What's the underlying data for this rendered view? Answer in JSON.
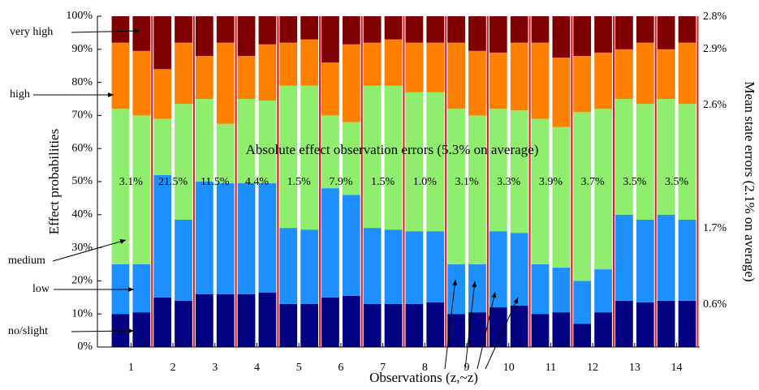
{
  "chart_data": {
    "type": "stacked_bar",
    "y_label": "Effect probabilities",
    "x_label": "Observations (z,~z)",
    "y2_label": "Mean state errors (2.1% on average)",
    "annotation": "Absolute effect observation errors (5.3% on average)",
    "xlim": [
      0.2,
      14.55
    ],
    "xticks": [
      1,
      2,
      3,
      4,
      5,
      6,
      7,
      8,
      9,
      10,
      11,
      12,
      13,
      14
    ],
    "x": [
      0.75,
      1.25,
      1.75,
      2.25,
      2.75,
      3.25,
      3.75,
      4.25,
      4.75,
      5.25,
      5.75,
      6.25,
      6.75,
      7.25,
      7.75,
      8.25,
      8.75,
      9.25,
      9.75,
      10.25,
      10.75,
      11.25,
      11.75,
      12.25,
      12.75,
      13.25,
      13.75,
      14.25
    ],
    "ylim": [
      0,
      100
    ],
    "yticks": [
      {
        "value": 0,
        "label": "0%"
      },
      {
        "value": 10,
        "label": "10%"
      },
      {
        "value": 20,
        "label": "20%"
      },
      {
        "value": 30,
        "label": "30%"
      },
      {
        "value": 40,
        "label": "40%"
      },
      {
        "value": 50,
        "label": "50%"
      },
      {
        "value": 60,
        "label": "60%"
      },
      {
        "value": 70,
        "label": "70%"
      },
      {
        "value": 80,
        "label": "80%"
      },
      {
        "value": 90,
        "label": "90%"
      },
      {
        "value": 100,
        "label": "100%"
      }
    ],
    "series": [
      {
        "name": "no/slight",
        "color": "#000080",
        "values": [
          10,
          10.5,
          15,
          14,
          16,
          16,
          16,
          16.5,
          13,
          13,
          15,
          15.5,
          13,
          13,
          13,
          13.5,
          10,
          10.5,
          12,
          12.5,
          10,
          10.5,
          7,
          10.5,
          14,
          13.5,
          14,
          14
        ]
      },
      {
        "name": "low",
        "color": "#1e8fff",
        "values": [
          15,
          14.5,
          37,
          24.5,
          34,
          33.5,
          33.5,
          33,
          23,
          22.5,
          33,
          30.5,
          23,
          22.5,
          22,
          21.5,
          15,
          14.5,
          23,
          22,
          15,
          13.5,
          13,
          13,
          26,
          25,
          26,
          24.5
        ]
      },
      {
        "name": "medium",
        "color": "#90ee6e",
        "values": [
          47,
          45,
          17,
          35,
          25,
          18,
          25.5,
          25,
          43,
          43.5,
          22,
          22,
          43,
          43.5,
          42,
          42,
          47,
          45,
          37,
          37,
          44,
          42.5,
          51,
          48.5,
          35,
          35,
          35,
          35
        ]
      },
      {
        "name": "high",
        "color": "#ff7f00",
        "values": [
          20,
          19.5,
          15,
          18.5,
          13,
          24.5,
          13,
          17,
          13,
          14,
          16,
          23.5,
          13,
          14,
          15,
          15,
          20,
          19.5,
          17,
          20.5,
          23,
          21,
          17,
          17,
          15,
          18.5,
          15,
          18.5
        ]
      },
      {
        "name": "very high",
        "color": "#7f0000",
        "values": [
          8,
          10.5,
          16,
          8,
          12,
          8,
          12,
          8.5,
          8,
          7,
          14,
          8.5,
          8,
          7,
          8,
          8,
          8,
          10.5,
          11,
          8,
          8,
          12.5,
          12,
          11,
          10,
          8,
          10,
          8
        ]
      }
    ],
    "observation_errors": {
      "values": [
        3.1,
        21.5,
        11.5,
        4.4,
        1.5,
        7.9,
        1.5,
        1.0,
        3.1,
        3.3,
        3.9,
        3.7,
        3.5,
        3.5
      ],
      "value_labels": [
        "3.1%",
        "21.5%",
        "11.5%",
        "4.4%",
        "1.5%",
        "7.9%",
        "1.5%",
        "1.0%",
        "3.1%",
        "3.3%",
        "3.9%",
        "3.7%",
        "3.5%",
        "3.5%"
      ]
    },
    "state_errors": {
      "values": [
        0.6,
        1.7,
        2.6,
        2.9,
        2.8
      ],
      "value_labels": [
        "0.6%",
        "1.7%",
        "2.6%",
        "2.9%",
        "2.8%"
      ]
    }
  }
}
